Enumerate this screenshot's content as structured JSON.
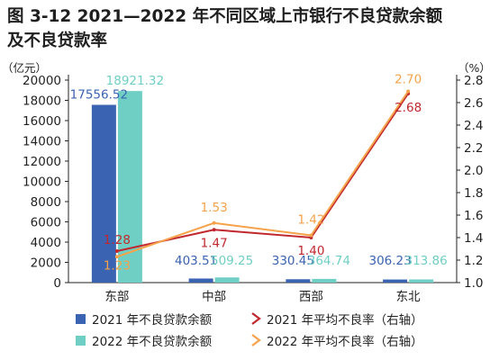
{
  "figure": {
    "title_line1": "图 3-12  2021—2022 年不同区域上市银行不良贷款余额",
    "title_line2": "及不良贷款率"
  },
  "chart_data": {
    "type": "bar",
    "categories": [
      "东部",
      "中部",
      "西部",
      "东北"
    ],
    "left_unit": "（亿元）",
    "right_unit": "（%）",
    "ylim": [
      0,
      20000
    ],
    "y_ticks": [
      0,
      2000,
      4000,
      6000,
      8000,
      10000,
      12000,
      14000,
      16000,
      18000,
      20000
    ],
    "y2lim": [
      1.0,
      2.8
    ],
    "y2_ticks": [
      "1.0",
      "1.2",
      "1.4",
      "1.6",
      "1.8",
      "2.0",
      "2.2",
      "2.4",
      "2.6",
      "2.8"
    ],
    "bar_series": [
      {
        "name": "2021 年不良贷款余额",
        "color": "#3a63b1",
        "values": [
          17556.52,
          403.51,
          330.45,
          306.23
        ],
        "labels": [
          "17556.52",
          "403.51",
          "330.45",
          "306.23"
        ]
      },
      {
        "name": "2022 年不良贷款余额",
        "color": "#6fcfc4",
        "values": [
          18921.32,
          509.25,
          364.74,
          313.86
        ],
        "labels": [
          "18921.32",
          "509.25",
          "364.74",
          "313.86"
        ]
      }
    ],
    "line_series": [
      {
        "name": "2021 年平均不良率（右轴）",
        "color": "#c0282e",
        "values": [
          1.28,
          1.47,
          1.4,
          2.68
        ],
        "labels": [
          "1.28",
          "1.47",
          "1.40",
          "2.68"
        ]
      },
      {
        "name": "2022 年平均不良率（右轴）",
        "color": "#f5a24b",
        "values": [
          1.23,
          1.53,
          1.42,
          2.7
        ],
        "labels": [
          "1.23",
          "1.53",
          "1.42",
          "2.70"
        ]
      }
    ],
    "legend": "bottom"
  }
}
